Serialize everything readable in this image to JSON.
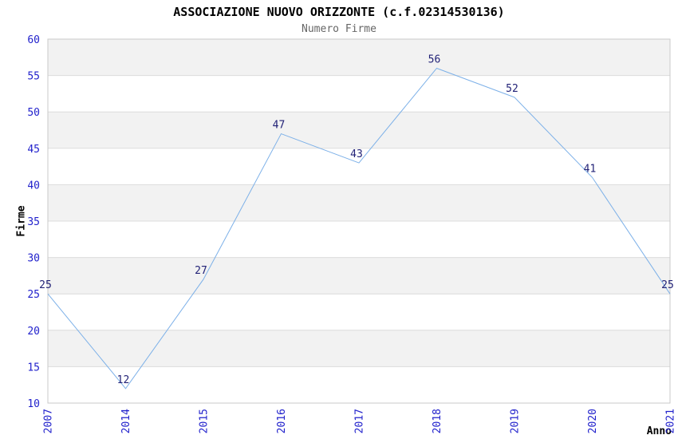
{
  "chart_data": {
    "type": "line",
    "title": "ASSOCIAZIONE NUOVO ORIZZONTE (c.f.02314530136)",
    "subtitle": "Numero Firme",
    "xlabel": "Anno",
    "ylabel": "Firme",
    "categories": [
      "2007",
      "2014",
      "2015",
      "2016",
      "2017",
      "2018",
      "2019",
      "2020",
      "2021"
    ],
    "series": [
      {
        "name": "Numero Firme",
        "values": [
          25,
          12,
          27,
          47,
          43,
          56,
          52,
          41,
          25
        ]
      }
    ],
    "ylim": [
      10,
      60
    ],
    "ytick_step": 5,
    "yticks": [
      10,
      15,
      20,
      25,
      30,
      35,
      40,
      45,
      50,
      55,
      60
    ],
    "grid": true,
    "banded_background": true,
    "legend_position": "none",
    "data_labels_visible": true,
    "colors": {
      "line": "#7cb0e8",
      "tick_label": "#2222cc",
      "data_label": "#222277",
      "band_gray": "#f2f2f2",
      "band_white": "#ffffff",
      "gridline": "#dcdcdc",
      "plot_border": "#c9c9c9",
      "title": "#000000",
      "subtitle": "#666666",
      "axis_title": "#000000"
    }
  }
}
